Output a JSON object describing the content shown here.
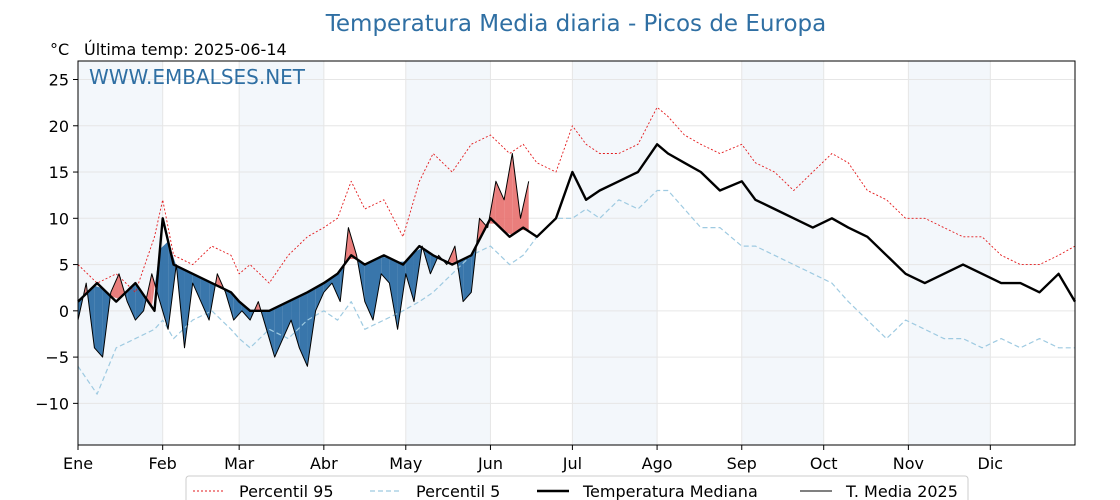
{
  "chart_data": {
    "type": "line",
    "title": "Temperatura Media diaria - Picos de Europa",
    "unit_label": "°C",
    "subtitle": "Última temp: 2025-06-14",
    "watermark": "WWW.EMBALSES.NET",
    "ylim": [
      -14.5,
      27
    ],
    "yticks": [
      25,
      20,
      15,
      10,
      5,
      0,
      -5,
      -10
    ],
    "ytick_labels": [
      "25",
      "20",
      "15",
      "10",
      "5",
      "0",
      "−5",
      "−10"
    ],
    "xlim": [
      0,
      365
    ],
    "months": [
      {
        "label": "Ene",
        "start": 0
      },
      {
        "label": "Feb",
        "start": 31
      },
      {
        "label": "Mar",
        "start": 59
      },
      {
        "label": "Abr",
        "start": 90
      },
      {
        "label": "May",
        "start": 120
      },
      {
        "label": "Jun",
        "start": 151
      },
      {
        "label": "Jul",
        "start": 181
      },
      {
        "label": "Ago",
        "start": 212
      },
      {
        "label": "Sep",
        "start": 243
      },
      {
        "label": "Oct",
        "start": 273
      },
      {
        "label": "Nov",
        "start": 304
      },
      {
        "label": "Dic",
        "start": 334
      }
    ],
    "grid": true,
    "legend_position": "bottom-center",
    "colors": {
      "p95": "#e31a1c",
      "p5": "#9ecae1",
      "median": "#000000",
      "current": "#000000",
      "above_fill": "#e8706e",
      "below_fill": "#2e6fa6",
      "band": "#f3f7fb",
      "title": "#2f6fa3"
    },
    "series": [
      {
        "name": "Percentil 95",
        "key": "p95",
        "x": [
          0,
          7,
          14,
          21,
          28,
          31,
          35,
          42,
          49,
          56,
          59,
          63,
          70,
          77,
          84,
          90,
          95,
          100,
          105,
          112,
          119,
          125,
          130,
          137,
          144,
          151,
          158,
          163,
          168,
          175,
          181,
          186,
          191,
          198,
          205,
          212,
          216,
          222,
          228,
          235,
          243,
          248,
          255,
          262,
          269,
          276,
          282,
          289,
          296,
          303,
          310,
          317,
          324,
          331,
          338,
          345,
          352,
          359,
          365
        ],
        "y": [
          5,
          3,
          4,
          2,
          8,
          12,
          6,
          5,
          7,
          6,
          4,
          5,
          3,
          6,
          8,
          9,
          10,
          14,
          11,
          12,
          8,
          14,
          17,
          15,
          18,
          19,
          17,
          18,
          16,
          15,
          20,
          18,
          17,
          17,
          18,
          22,
          21,
          19,
          18,
          17,
          18,
          16,
          15,
          13,
          15,
          17,
          16,
          13,
          12,
          10,
          10,
          9,
          8,
          8,
          6,
          5,
          5,
          6,
          7
        ]
      },
      {
        "name": "Percentil 5",
        "key": "p5",
        "x": [
          0,
          7,
          14,
          21,
          28,
          31,
          35,
          42,
          49,
          56,
          59,
          63,
          70,
          77,
          84,
          90,
          95,
          100,
          105,
          112,
          119,
          125,
          130,
          137,
          144,
          151,
          158,
          163,
          168,
          175,
          181,
          186,
          191,
          198,
          205,
          212,
          216,
          222,
          228,
          235,
          243,
          248,
          255,
          262,
          269,
          276,
          282,
          289,
          296,
          303,
          310,
          317,
          324,
          331,
          338,
          345,
          352,
          359,
          365
        ],
        "y": [
          -6,
          -9,
          -4,
          -3,
          -2,
          -1,
          -3,
          -1,
          0,
          -2,
          -3,
          -4,
          -2,
          -3,
          -1,
          0,
          -1,
          1,
          -2,
          -1,
          0,
          1,
          2,
          4,
          6,
          7,
          5,
          6,
          8,
          10,
          10,
          11,
          10,
          12,
          11,
          13,
          13,
          11,
          9,
          9,
          7,
          7,
          6,
          5,
          4,
          3,
          1,
          -1,
          -3,
          -1,
          -2,
          -3,
          -3,
          -4,
          -3,
          -4,
          -3,
          -4,
          -4
        ]
      },
      {
        "name": "Temperatura Mediana",
        "key": "median",
        "x": [
          0,
          7,
          14,
          21,
          28,
          31,
          35,
          42,
          49,
          56,
          59,
          63,
          70,
          77,
          84,
          90,
          95,
          100,
          105,
          112,
          119,
          125,
          130,
          137,
          144,
          151,
          158,
          163,
          168,
          175,
          181,
          186,
          191,
          198,
          205,
          212,
          216,
          222,
          228,
          235,
          243,
          248,
          255,
          262,
          269,
          276,
          282,
          289,
          296,
          303,
          310,
          317,
          324,
          331,
          338,
          345,
          352,
          359,
          365
        ],
        "y": [
          1,
          3,
          1,
          3,
          0,
          10,
          5,
          4,
          3,
          2,
          1,
          0,
          0,
          1,
          2,
          3,
          4,
          6,
          5,
          6,
          5,
          7,
          6,
          5,
          6,
          10,
          8,
          9,
          8,
          10,
          15,
          12,
          13,
          14,
          15,
          18,
          17,
          16,
          15,
          13,
          14,
          12,
          11,
          10,
          9,
          10,
          9,
          8,
          6,
          4,
          3,
          4,
          5,
          4,
          3,
          3,
          2,
          4,
          1
        ]
      },
      {
        "name": "T. Media 2025",
        "key": "current",
        "x": [
          0,
          3,
          6,
          9,
          12,
          15,
          18,
          21,
          24,
          27,
          30,
          33,
          36,
          39,
          42,
          45,
          48,
          51,
          54,
          57,
          60,
          63,
          66,
          69,
          72,
          75,
          78,
          81,
          84,
          87,
          90,
          93,
          96,
          99,
          102,
          105,
          108,
          111,
          114,
          117,
          120,
          123,
          126,
          129,
          132,
          135,
          138,
          141,
          144,
          147,
          150,
          153,
          156,
          159,
          162,
          165
        ],
        "y": [
          -1,
          3,
          -4,
          -5,
          2,
          4,
          1,
          -1,
          0,
          4,
          1,
          -2,
          5,
          -4,
          3,
          1,
          -1,
          4,
          2,
          -1,
          0,
          -1,
          1,
          -2,
          -5,
          -3,
          -1,
          -4,
          -6,
          0,
          2,
          3,
          1,
          9,
          6,
          1,
          -1,
          4,
          3,
          -2,
          4,
          1,
          7,
          4,
          6,
          5,
          7,
          1,
          2,
          10,
          9,
          14,
          12,
          17,
          10,
          14
        ]
      }
    ]
  }
}
